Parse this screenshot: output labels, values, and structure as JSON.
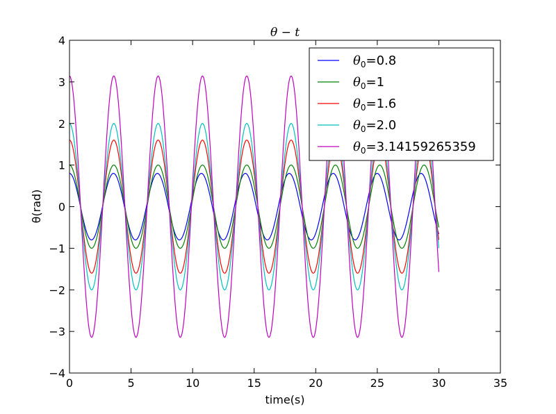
{
  "chart_data": {
    "type": "line",
    "title": "θ − t",
    "xlabel": "time(s)",
    "ylabel": "θ(rad)",
    "xlim": [
      0,
      35
    ],
    "ylim": [
      -4,
      4
    ],
    "xticks": [
      0,
      5,
      10,
      15,
      20,
      25,
      30,
      35
    ],
    "yticks": [
      -4,
      -3,
      -2,
      -1,
      0,
      1,
      2,
      3,
      4
    ],
    "xtick_labels": [
      "0",
      "5",
      "10",
      "15",
      "20",
      "25",
      "30",
      "35"
    ],
    "ytick_labels": [
      "−4",
      "−3",
      "−2",
      "−1",
      "0",
      "1",
      "2",
      "3",
      "4"
    ],
    "grid": false,
    "legend_position": "top-right",
    "t_range": [
      0,
      30
    ],
    "series": [
      {
        "name": "θ0=0.8",
        "sub_prefix": "θ",
        "sub": "0",
        "suffix": "=0.8",
        "theta0": 0.8,
        "period": 3.57,
        "color": "#0000ff"
      },
      {
        "name": "θ0=1",
        "sub_prefix": "θ",
        "sub": "0",
        "suffix": "=1",
        "theta0": 1.0,
        "period": 3.6,
        "color": "#008000"
      },
      {
        "name": "θ0=1.6",
        "sub_prefix": "θ",
        "sub": "0",
        "suffix": "=1.6",
        "theta0": 1.6,
        "period": 3.6,
        "color": "#ff0000"
      },
      {
        "name": "θ0=2.0",
        "sub_prefix": "θ",
        "sub": "0",
        "suffix": "=2.0",
        "theta0": 2.0,
        "period": 3.6,
        "color": "#00bfbf"
      },
      {
        "name": "θ0=3.14159265359",
        "sub_prefix": "θ",
        "sub": "0",
        "suffix": "=3.14159265359",
        "theta0": 3.14159265359,
        "period": 3.6,
        "color": "#bf00bf"
      }
    ]
  }
}
